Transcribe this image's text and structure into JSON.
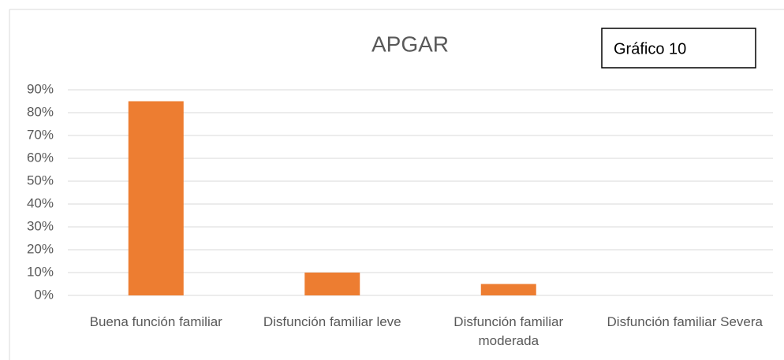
{
  "chart_data": {
    "type": "bar",
    "title": "APGAR",
    "annotation": "Gráfico 10",
    "categories": [
      "Buena función familiar",
      "Disfunción familiar leve",
      "Disfunción familiar moderada",
      "Disfunción familiar Severa"
    ],
    "values": [
      85,
      10,
      5,
      0
    ],
    "color": "#ed7d31",
    "ylim": [
      0,
      90
    ],
    "yticks": [
      {
        "value": 0,
        "label": "0%"
      },
      {
        "value": 10,
        "label": "10%"
      },
      {
        "value": 20,
        "label": "20%"
      },
      {
        "value": 30,
        "label": "30%"
      },
      {
        "value": 40,
        "label": "40%"
      },
      {
        "value": 50,
        "label": "50%"
      },
      {
        "value": 60,
        "label": "60%"
      },
      {
        "value": 70,
        "label": "70%"
      },
      {
        "value": 80,
        "label": "80%"
      },
      {
        "value": 90,
        "label": "90%"
      }
    ],
    "grid": true
  }
}
